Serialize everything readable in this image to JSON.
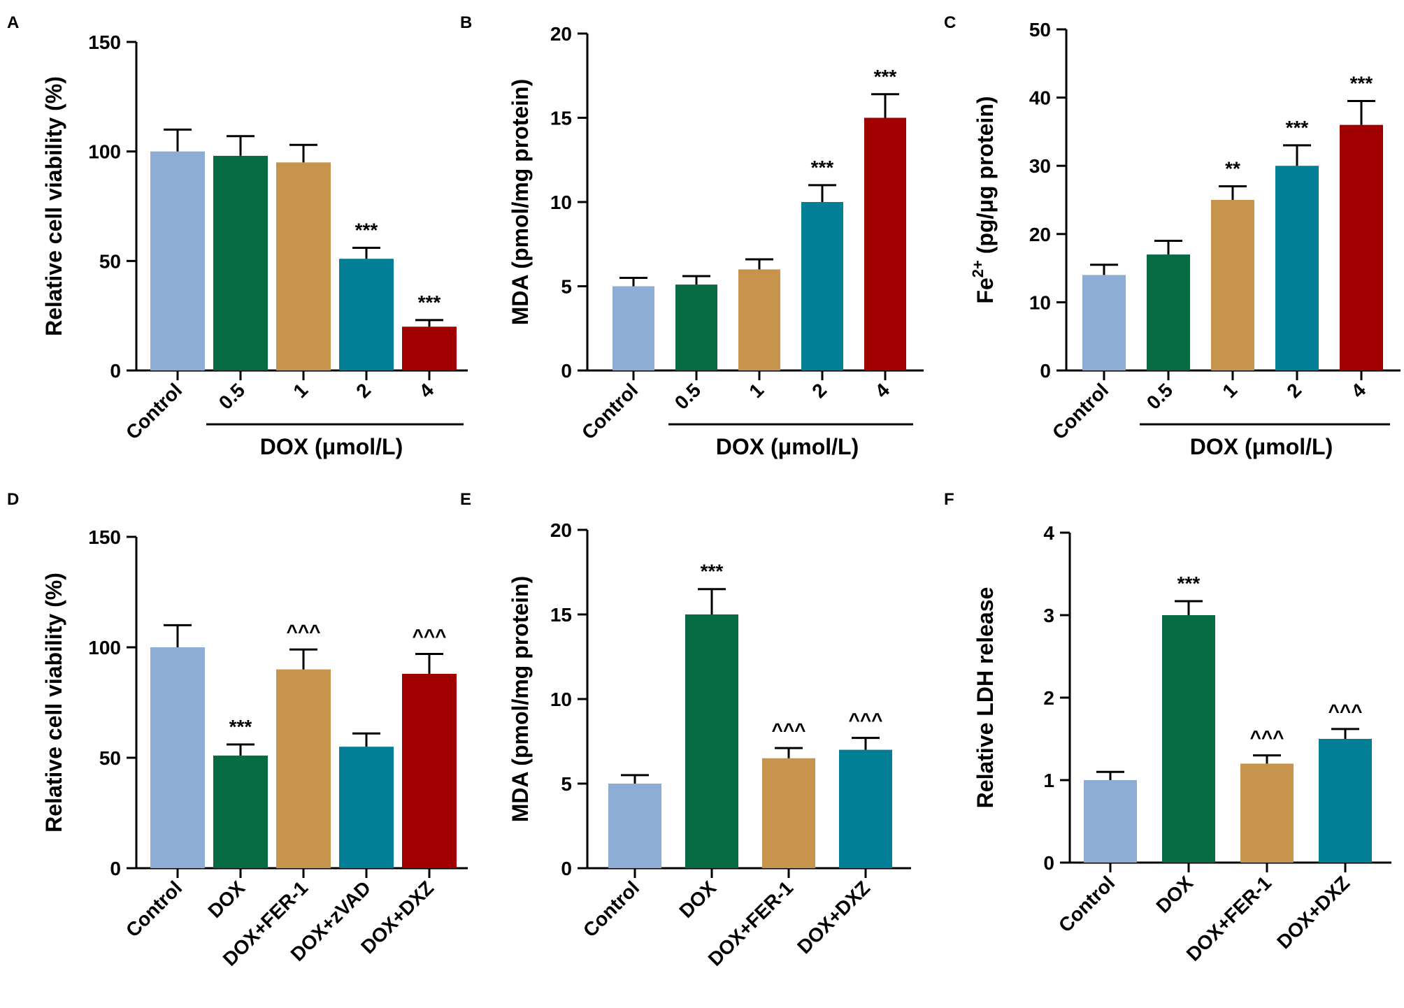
{
  "figure": {
    "colors": [
      "#8eadd4",
      "#066b43",
      "#c6944d",
      "#037e97",
      "#a00000"
    ],
    "palette_names": [
      "light-blue",
      "dark-green",
      "tan",
      "teal",
      "dark-red"
    ]
  },
  "chart_data": [
    {
      "panel": "A",
      "type": "bar",
      "ylabel": "Relative cell viability (%)",
      "ylim": [
        0,
        150
      ],
      "yticks": [
        0,
        50,
        100,
        150
      ],
      "categories": [
        "Control",
        "0.5",
        "1",
        "2",
        "4"
      ],
      "values": [
        100,
        98,
        95,
        51,
        20
      ],
      "errors": [
        10,
        9,
        8,
        5,
        3
      ],
      "significance": [
        "",
        "",
        "",
        "***",
        "***"
      ],
      "group_label": "DOX (μmol/L)",
      "group_start": 1,
      "group_end": 4
    },
    {
      "panel": "B",
      "type": "bar",
      "ylabel": "MDA (pmol/mg protein)",
      "ylim": [
        0,
        20
      ],
      "yticks": [
        0,
        5,
        10,
        15,
        20
      ],
      "categories": [
        "Control",
        "0.5",
        "1",
        "2",
        "4"
      ],
      "values": [
        5,
        5.1,
        6,
        10,
        15
      ],
      "errors": [
        0.5,
        0.5,
        0.6,
        1,
        1.4
      ],
      "significance": [
        "",
        "",
        "",
        "***",
        "***"
      ],
      "group_label": "DOX (μmol/L)",
      "group_start": 1,
      "group_end": 4
    },
    {
      "panel": "C",
      "type": "bar",
      "ylabel_main": "Fe",
      "ylabel_sup": "2+",
      "ylabel_rest": " (pg/μg protein)",
      "ylim": [
        0,
        50
      ],
      "yticks": [
        0,
        10,
        20,
        30,
        40,
        50
      ],
      "categories": [
        "Control",
        "0.5",
        "1",
        "2",
        "4"
      ],
      "values": [
        14,
        17,
        25,
        30,
        36
      ],
      "errors": [
        1.5,
        2,
        2,
        3,
        3.5
      ],
      "significance": [
        "",
        "",
        "**",
        "***",
        "***"
      ],
      "group_label": "DOX (μmol/L)",
      "group_start": 1,
      "group_end": 4
    },
    {
      "panel": "D",
      "type": "bar",
      "ylabel": "Relative cell viability (%)",
      "ylim": [
        0,
        150
      ],
      "yticks": [
        0,
        50,
        100,
        150
      ],
      "categories": [
        "Control",
        "DOX",
        "DOX+FER-1",
        "DOX+zVAD",
        "DOX+DXZ"
      ],
      "values": [
        100,
        51,
        90,
        55,
        88
      ],
      "errors": [
        10,
        5,
        9,
        6,
        9
      ],
      "significance": [
        "",
        "***",
        "^^^",
        "",
        "^^^"
      ]
    },
    {
      "panel": "E",
      "type": "bar",
      "ylabel": "MDA (pmol/mg protein)",
      "ylim": [
        0,
        20
      ],
      "yticks": [
        0,
        5,
        10,
        15,
        20
      ],
      "categories": [
        "Control",
        "DOX",
        "DOX+FER-1",
        "DOX+DXZ"
      ],
      "values": [
        5,
        15,
        6.5,
        7
      ],
      "errors": [
        0.5,
        1.5,
        0.6,
        0.7
      ],
      "significance": [
        "",
        "***",
        "^^^",
        "^^^"
      ]
    },
    {
      "panel": "F",
      "type": "bar",
      "ylabel": "Relative LDH release",
      "ylim": [
        0,
        4
      ],
      "yticks": [
        0,
        1,
        2,
        3,
        4
      ],
      "categories": [
        "Control",
        "DOX",
        "DOX+FER-1",
        "DOX+DXZ"
      ],
      "values": [
        1,
        3,
        1.2,
        1.5
      ],
      "errors": [
        0.1,
        0.17,
        0.1,
        0.12
      ],
      "significance": [
        "",
        "***",
        "^^^",
        "^^^"
      ]
    }
  ]
}
